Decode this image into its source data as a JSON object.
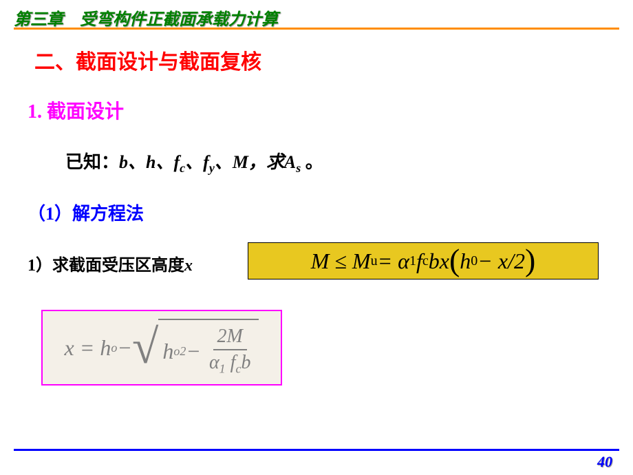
{
  "chapter_title": "第三章　受弯构件正截面承载力计算",
  "section_title": "二、截面设计与截面复核",
  "subsection_title": "1. 截面设计",
  "known": {
    "prefix": "已知：",
    "vars": "b、h、f",
    "sub_c": "c",
    "mid1": "、f",
    "sub_y": "y",
    "mid2": "、M，求A",
    "sub_s": "s",
    "suffix": " 。"
  },
  "method_title": "（1）解方程法",
  "step1": {
    "label": "1）求截面受压区高度",
    "var": "x"
  },
  "formula1": {
    "lhs": "M ≤ M",
    "sub_u": "u",
    "eq": " = α",
    "sub_1": "1",
    "mid": " f",
    "sub_c": "c",
    "bx": "bx",
    "inner_h": "h",
    "sub_0": "0",
    "tail": " − x/2"
  },
  "formula2": {
    "lhs_x": "x = h",
    "sub_o1": "o",
    "minus": " − ",
    "h2": "h",
    "sub_o2": "o",
    "sup_2": "2",
    "minus2": " − ",
    "frac_num": "2M",
    "alpha": "α",
    "sub_1": "1",
    "f": " f",
    "sub_c": "c",
    "b": "b"
  },
  "page_number": "40",
  "colors": {
    "chapter_title": "#008000",
    "hr_top": "#ff8c00",
    "section_title": "#ff0000",
    "subsection_title": "#ff00ff",
    "method_title": "#0000ff",
    "formula1_bg": "#e8c820",
    "formula2_bg": "#f4f0e8",
    "formula2_border": "#ff00ff",
    "formula2_text": "#808080",
    "hr_bottom": "#0000ff",
    "page_num": "#0000ff"
  }
}
